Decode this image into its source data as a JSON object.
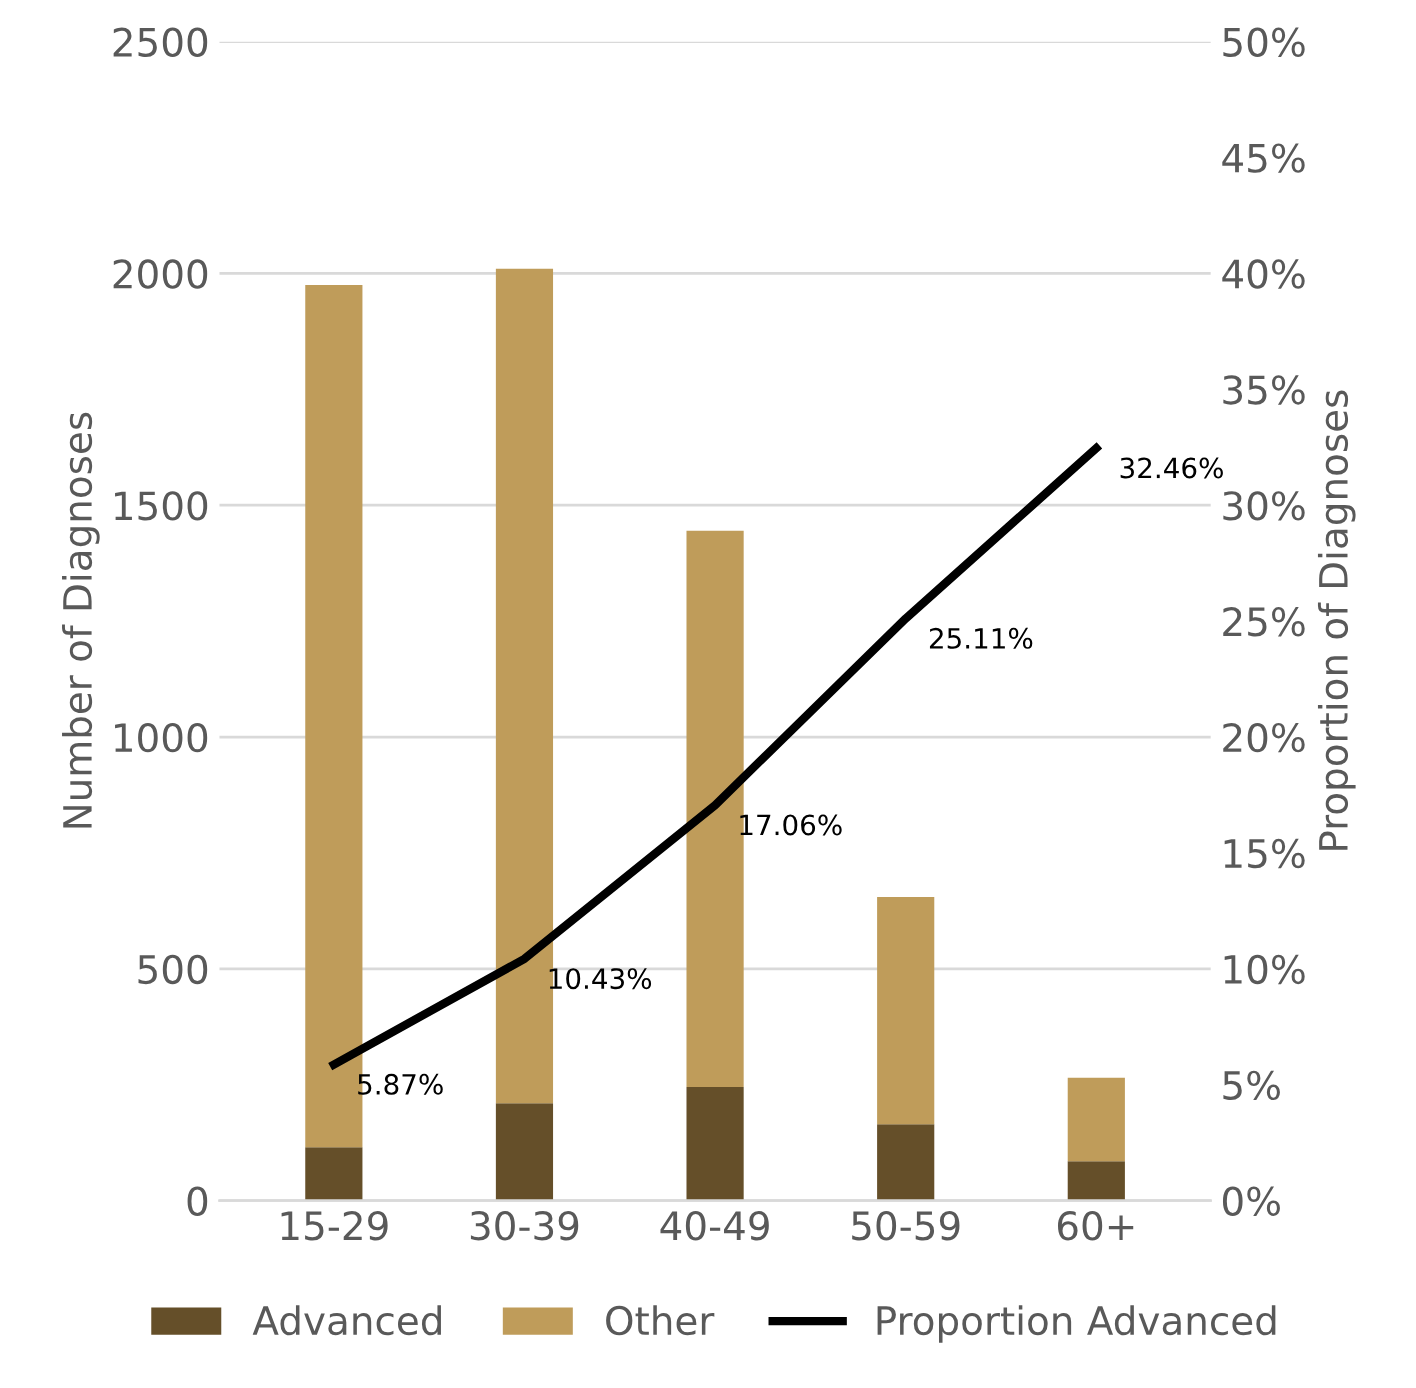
{
  "chart_data": {
    "type": "bar",
    "stacked": true,
    "categories": [
      "15-29",
      "30-39",
      "40-49",
      "50-59",
      "60+"
    ],
    "ylabel": "Number of Diagnoses",
    "y2label": "Proportion of Diagnoses",
    "ylim": [
      0,
      2500
    ],
    "yticks": [
      0,
      500,
      1000,
      1500,
      2000,
      2500
    ],
    "y2lim": [
      0,
      50
    ],
    "y2ticks": [
      {
        "value": 0,
        "label": "0%"
      },
      {
        "value": 5,
        "label": "5%"
      },
      {
        "value": 10,
        "label": "10%"
      },
      {
        "value": 15,
        "label": "15%"
      },
      {
        "value": 20,
        "label": "20%"
      },
      {
        "value": 25,
        "label": "25%"
      },
      {
        "value": 30,
        "label": "30%"
      },
      {
        "value": 35,
        "label": "35%"
      },
      {
        "value": 40,
        "label": "40%"
      },
      {
        "value": 45,
        "label": "45%"
      },
      {
        "value": 50,
        "label": "50%"
      }
    ],
    "grid": "y",
    "legend": "bottom",
    "series": [
      {
        "name": "Advanced",
        "color": "#654f29",
        "values": [
          115,
          210,
          245,
          165,
          85
        ]
      },
      {
        "name": "Other",
        "color": "#bf9c5a",
        "values": [
          1860,
          1800,
          1200,
          490,
          180
        ]
      },
      {
        "name": "Proportion Advanced",
        "type": "line",
        "axis": "y2",
        "color": "#000000",
        "values": [
          5.87,
          10.43,
          17.06,
          25.11,
          32.46
        ],
        "value_labels": [
          "5.87%",
          "10.43%",
          "17.06%",
          "25.11%",
          "32.46%"
        ]
      }
    ]
  }
}
